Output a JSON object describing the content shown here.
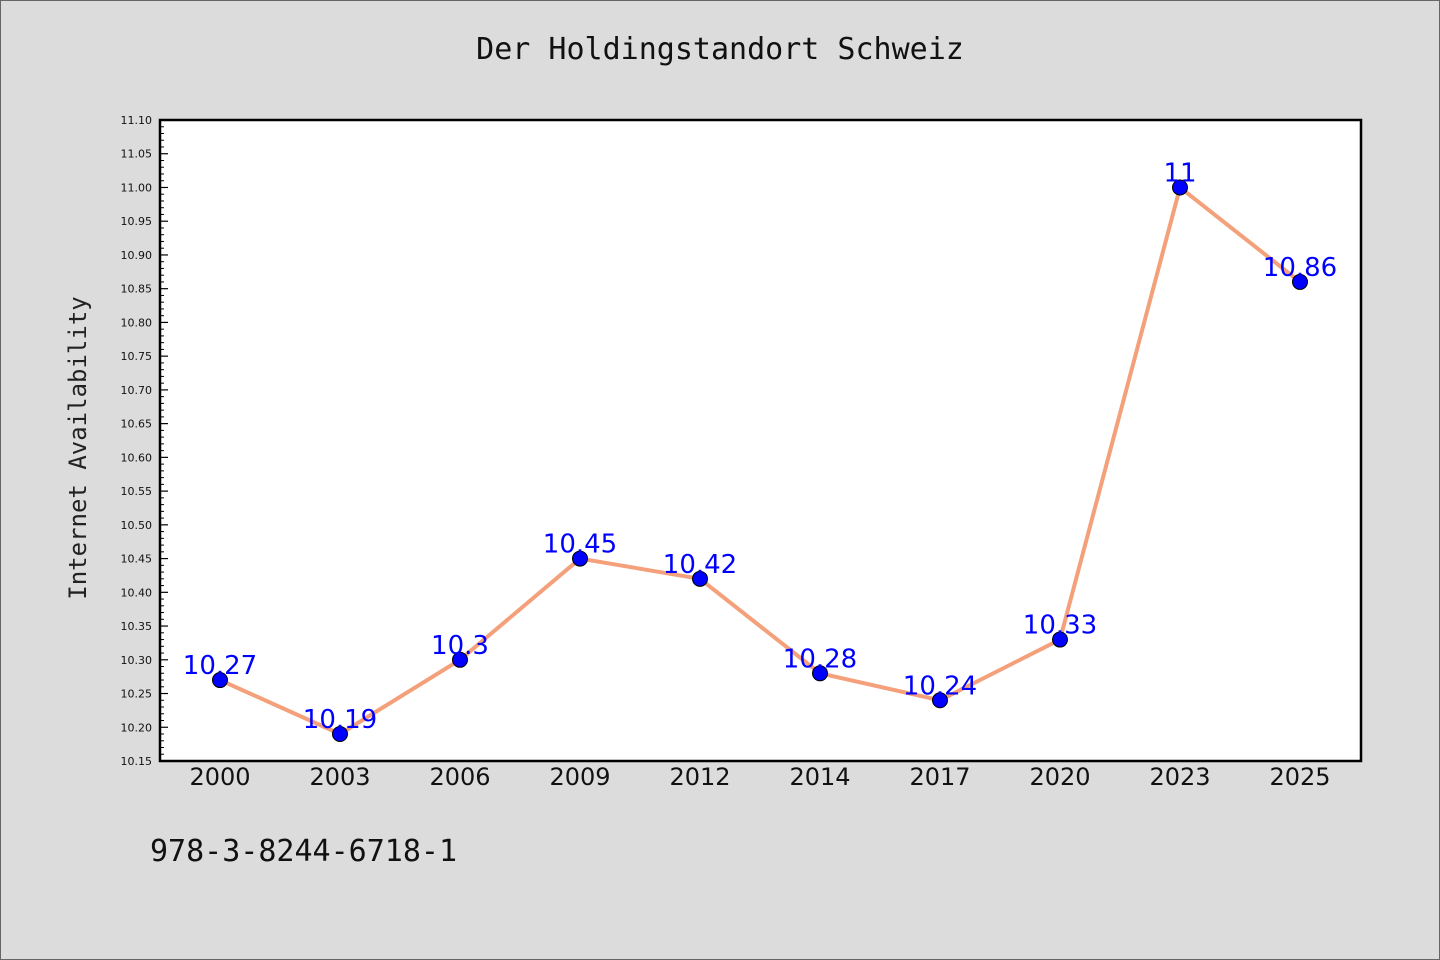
{
  "chart_data": {
    "type": "line",
    "title": "Der Holdingstandort Schweiz",
    "xlabel": "",
    "ylabel": "Internet Availability",
    "categories": [
      "2000",
      "2003",
      "2006",
      "2009",
      "2012",
      "2014",
      "2017",
      "2020",
      "2023",
      "2025"
    ],
    "values": [
      10.27,
      10.19,
      10.3,
      10.45,
      10.42,
      10.28,
      10.24,
      10.33,
      11,
      10.86
    ],
    "data_labels": [
      "10.27",
      "10.19",
      "10.3",
      "10.45",
      "10.42",
      "10.28",
      "10.24",
      "10.33",
      "11",
      "10.86"
    ],
    "ylim": [
      10.15,
      11.1
    ],
    "yticks": [
      "10.15",
      "10.20",
      "10.25",
      "10.30",
      "10.35",
      "10.40",
      "10.45",
      "10.50",
      "10.55",
      "10.60",
      "10.65",
      "10.70",
      "10.75",
      "10.80",
      "10.85",
      "10.90",
      "10.95",
      "11.00",
      "11.05",
      "11.10"
    ],
    "grid": false,
    "line_color": "#f4a07a",
    "marker_color": "#0000ff",
    "label_color": "#0000ff"
  },
  "footer": {
    "isbn": "978-3-8244-6718-1"
  }
}
